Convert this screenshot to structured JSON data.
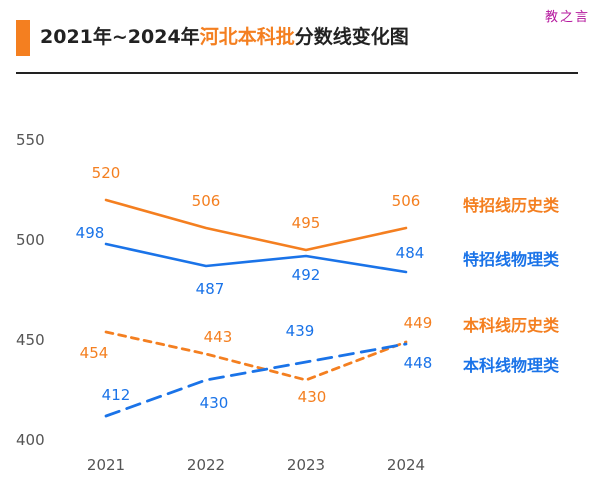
{
  "title_prefix": "2021年~2024年",
  "title_highlight": "河北本科批",
  "title_suffix": "分数线变化图",
  "watermark": "教之言",
  "chart_data": {
    "type": "line",
    "title": "2021年~2024年河北本科批分数线变化图",
    "categories": [
      "2021",
      "2022",
      "2023",
      "2024"
    ],
    "yticks": [
      400,
      450,
      500,
      550
    ],
    "ylim": [
      400,
      550
    ],
    "grid": false,
    "legend": "inline-right",
    "series": [
      {
        "name": "特招线历史类",
        "values": [
          520,
          506,
          495,
          506
        ],
        "color": "#F47F20",
        "dash": false
      },
      {
        "name": "特招线物理类",
        "values": [
          498,
          487,
          492,
          484
        ],
        "color": "#1A73E8",
        "dash": false
      },
      {
        "name": "本科线历史类",
        "values": [
          454,
          443,
          430,
          449
        ],
        "color": "#F47F20",
        "dash": true
      },
      {
        "name": "本科线物理类",
        "values": [
          412,
          430,
          439,
          448
        ],
        "color": "#1A73E8",
        "dash": true
      }
    ]
  }
}
